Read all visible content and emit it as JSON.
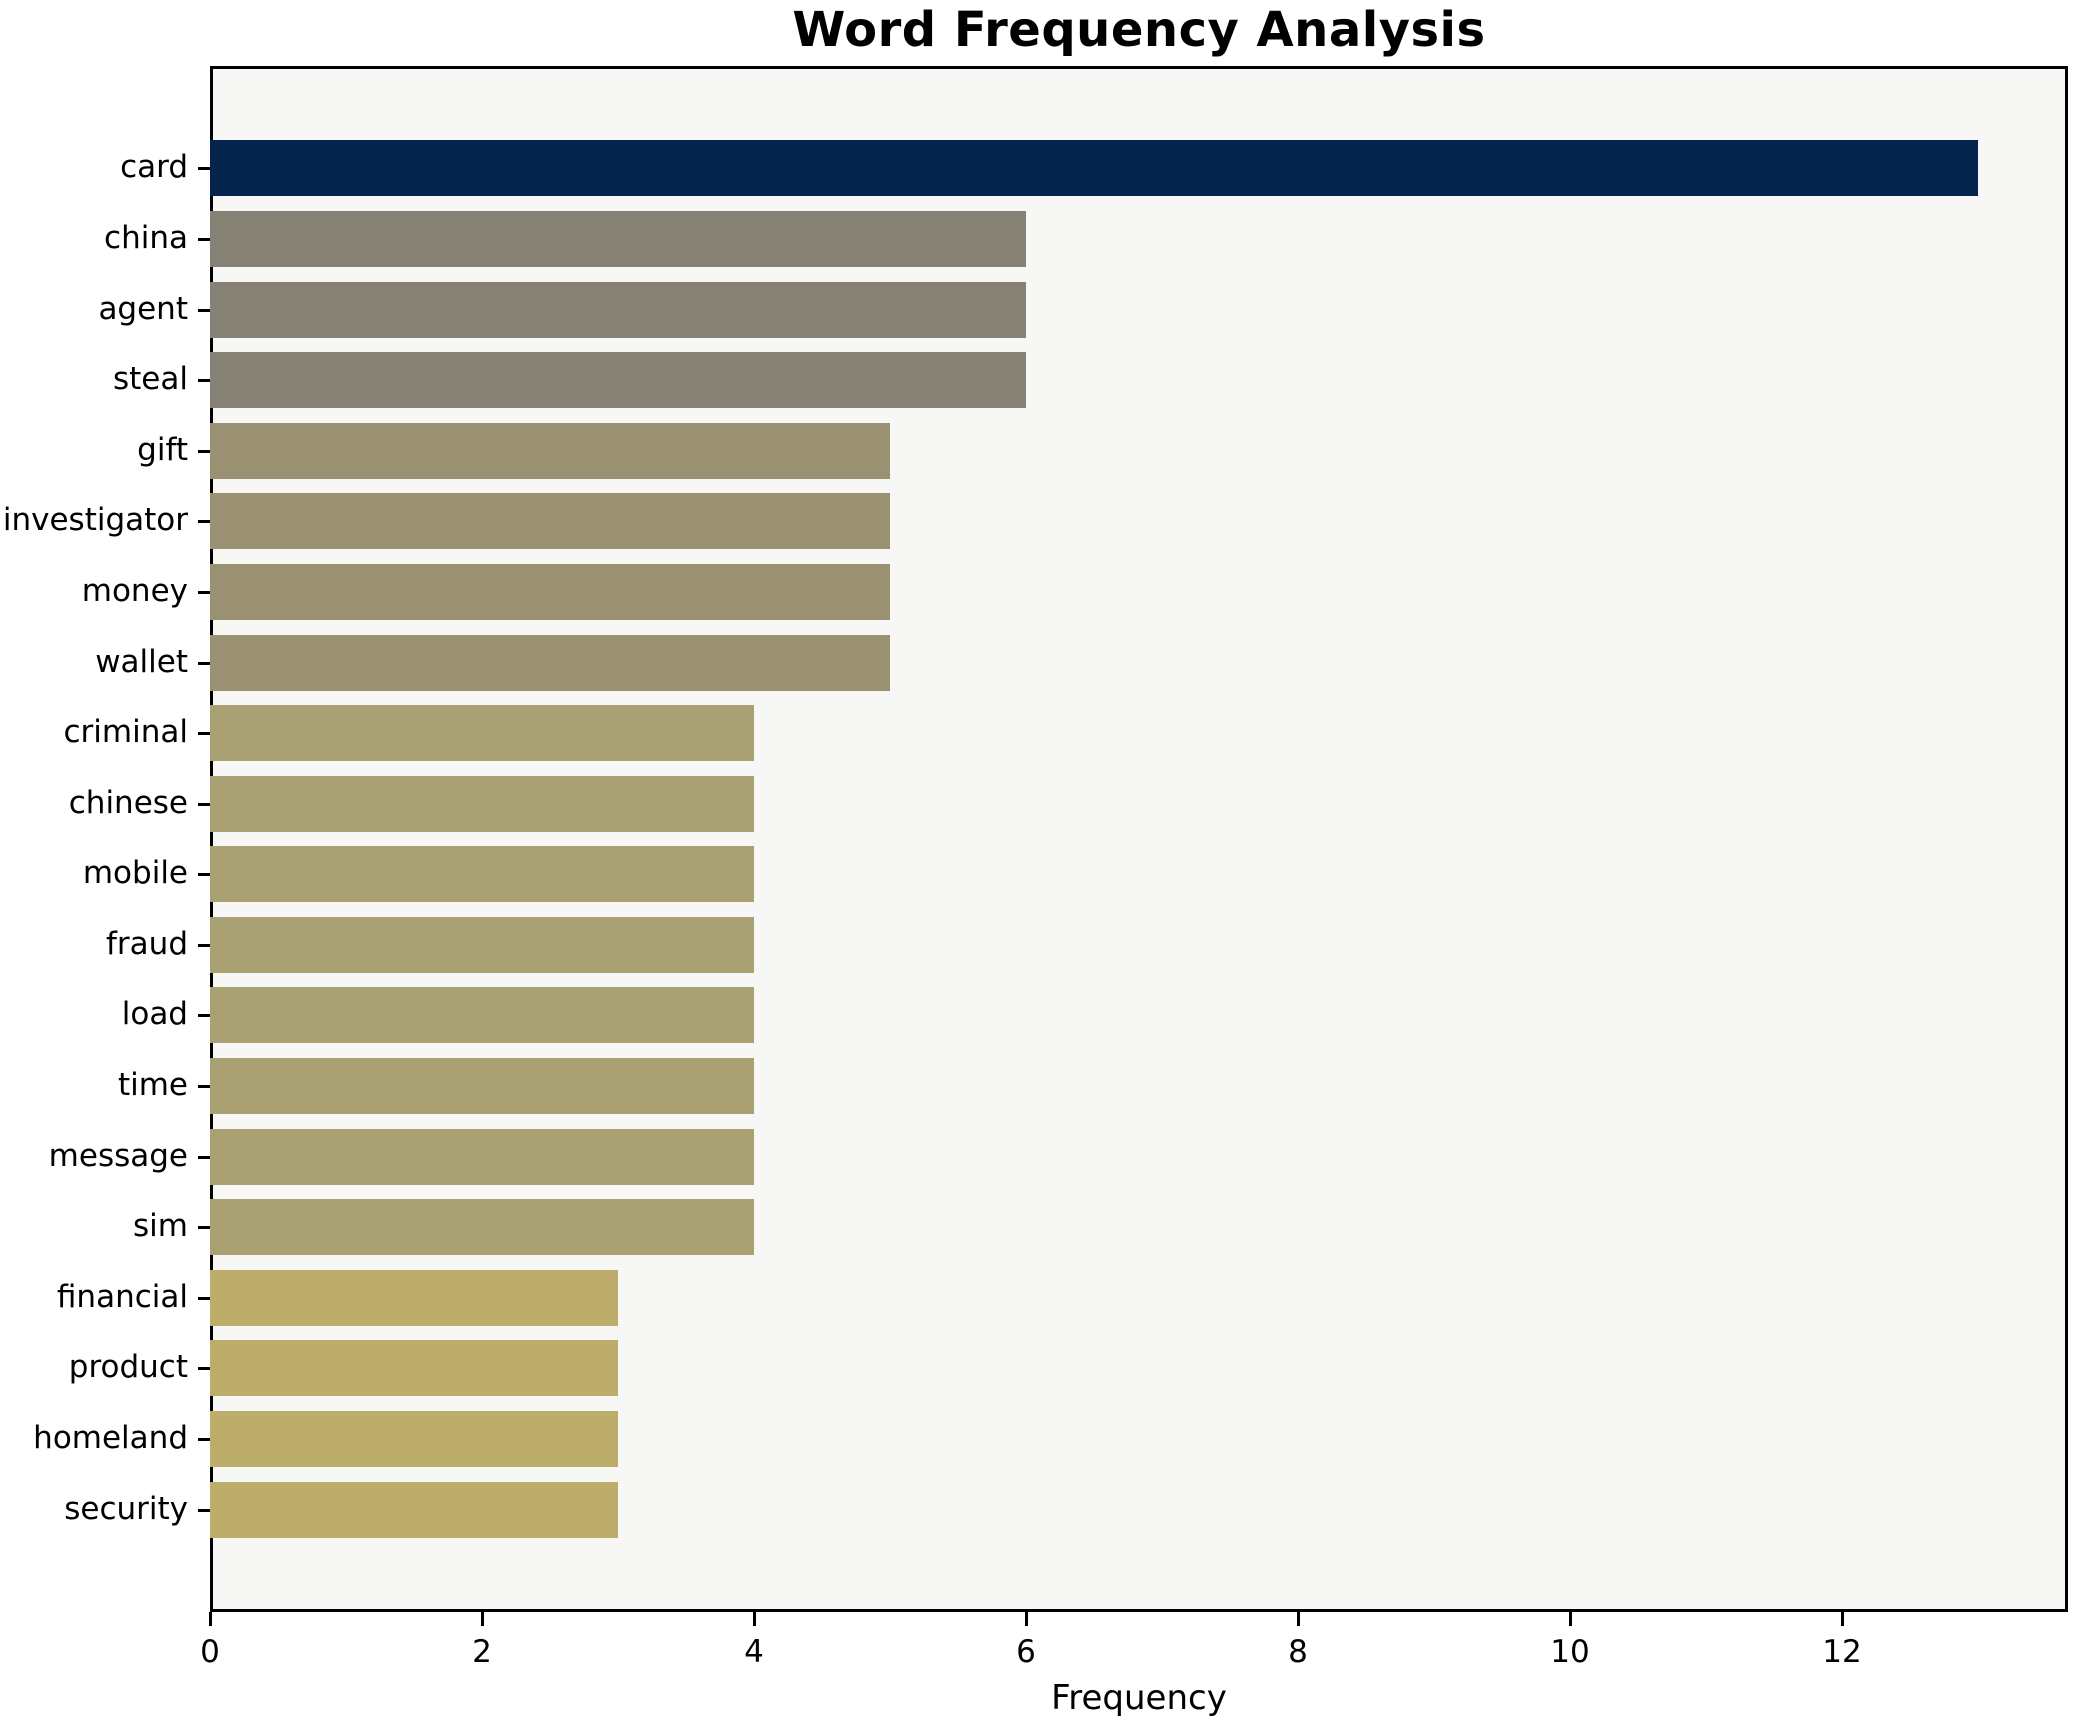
{
  "title": "Word Frequency Analysis",
  "chart_data": {
    "type": "bar",
    "orientation": "horizontal",
    "title": "Word Frequency Analysis",
    "xlabel": "Frequency",
    "ylabel": "",
    "categories": [
      "card",
      "china",
      "agent",
      "steal",
      "gift",
      "investigator",
      "money",
      "wallet",
      "criminal",
      "chinese",
      "mobile",
      "fraud",
      "load",
      "time",
      "message",
      "sim",
      "financial",
      "product",
      "homeland",
      "security"
    ],
    "values": [
      13,
      6,
      6,
      6,
      5,
      5,
      5,
      5,
      4,
      4,
      4,
      4,
      4,
      4,
      4,
      4,
      3,
      3,
      3,
      3
    ],
    "colors": [
      "#04234d",
      "#858174",
      "#858174",
      "#858174",
      "#999172",
      "#999172",
      "#999172",
      "#999172",
      "#a9a173",
      "#a9a173",
      "#a9a173",
      "#a9a173",
      "#a9a173",
      "#a9a173",
      "#a9a173",
      "#a9a173",
      "#bcae6a",
      "#bcae6a",
      "#bcae6a",
      "#bcae6a"
    ],
    "x_ticks": [
      0,
      2,
      4,
      6,
      8,
      10,
      12
    ],
    "xlim": [
      0,
      13.66
    ],
    "grid": false,
    "legend": false,
    "plot_background": "#f7f7f5",
    "border_color": "#000000"
  }
}
